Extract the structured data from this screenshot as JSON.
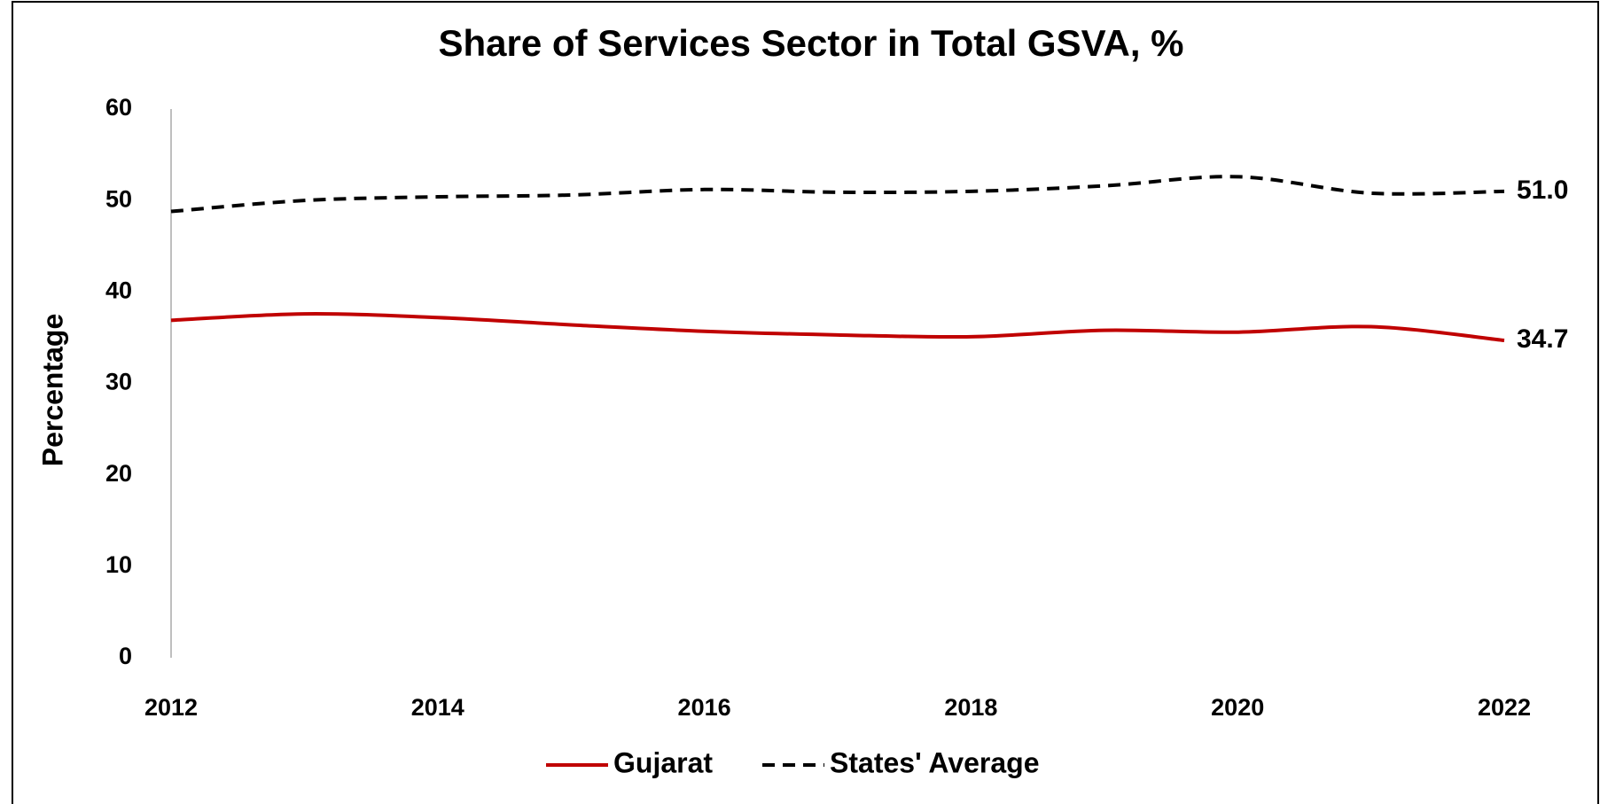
{
  "chart_data": {
    "type": "line",
    "title": "Share of Services Sector in Total GSVA, %",
    "y_label": "Percentage",
    "x": [
      2012,
      2013,
      2014,
      2015,
      2016,
      2017,
      2018,
      2019,
      2020,
      2021,
      2022
    ],
    "series": [
      {
        "name": "Gujarat",
        "color": "#c00000",
        "dash": false,
        "values": [
          36.9,
          37.6,
          37.2,
          36.4,
          35.7,
          35.3,
          35.1,
          35.8,
          35.6,
          36.2,
          34.7
        ],
        "value_labels": [
          null,
          null,
          null,
          null,
          null,
          null,
          null,
          null,
          null,
          null,
          "34.7"
        ]
      },
      {
        "name": "States' Average",
        "color": "#000000",
        "dash": true,
        "values": [
          48.8,
          50.0,
          50.4,
          50.6,
          51.2,
          50.9,
          51.0,
          51.6,
          52.6,
          50.8,
          51.0
        ],
        "value_labels": [
          null,
          null,
          null,
          null,
          null,
          null,
          null,
          null,
          null,
          null,
          "51.0"
        ]
      }
    ],
    "xlim": [
      2012,
      2022
    ],
    "xticks": [
      2012,
      2014,
      2016,
      2018,
      2020,
      2022
    ],
    "ylim": [
      0,
      60
    ],
    "yticks": [
      0,
      10,
      20,
      30,
      40,
      50,
      60
    ],
    "grid": false,
    "legend": "bottom"
  }
}
